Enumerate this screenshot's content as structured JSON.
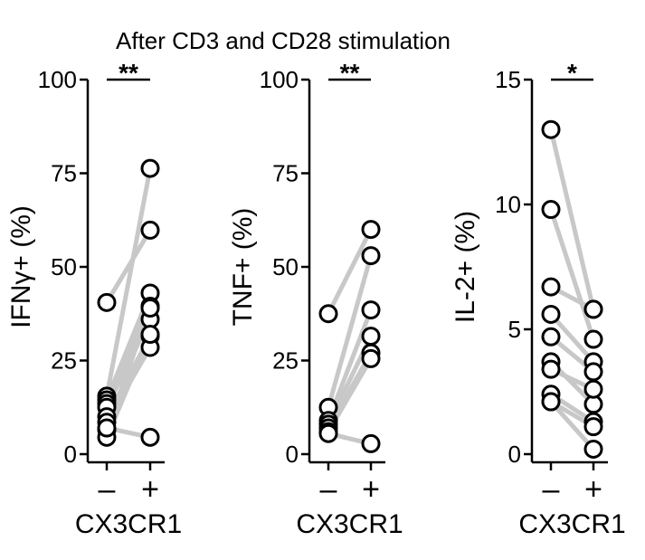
{
  "figure": {
    "title": "After CD3 and CD28 stimulation"
  },
  "chart_data": [
    {
      "type": "scatter",
      "ylabel": "IFNγ+ (%)",
      "xlabel": "CX3CR1",
      "categories": [
        "–",
        "+"
      ],
      "ylim": [
        0,
        100
      ],
      "yticks": [
        0,
        25,
        50,
        75,
        100
      ],
      "significance": "**",
      "pairs": [
        [
          40.5,
          59.8
        ],
        [
          15.5,
          76.3
        ],
        [
          14.5,
          43.0
        ],
        [
          13.5,
          39.5
        ],
        [
          12.5,
          36.0
        ],
        [
          10.0,
          31.5
        ],
        [
          8.5,
          28.5
        ],
        [
          6.5,
          39.0
        ],
        [
          4.5,
          32.0
        ],
        [
          7.0,
          4.5
        ]
      ],
      "colors": {
        "point": "#000000",
        "line": "#c8c8c8"
      }
    },
    {
      "type": "scatter",
      "ylabel": "TNF+ (%)",
      "xlabel": "CX3CR1",
      "categories": [
        "–",
        "+"
      ],
      "ylim": [
        0,
        100
      ],
      "yticks": [
        0,
        25,
        50,
        75,
        100
      ],
      "significance": "**",
      "pairs": [
        [
          37.5,
          60.0
        ],
        [
          12.5,
          53.0
        ],
        [
          9.0,
          38.5
        ],
        [
          8.0,
          31.5
        ],
        [
          7.0,
          27.0
        ],
        [
          6.0,
          25.5
        ],
        [
          5.5,
          2.8
        ]
      ],
      "colors": {
        "point": "#000000",
        "line": "#c8c8c8"
      }
    },
    {
      "type": "scatter",
      "ylabel": "IL-2+ (%)",
      "xlabel": "CX3CR1",
      "categories": [
        "–",
        "+"
      ],
      "ylim": [
        0,
        15
      ],
      "yticks": [
        0,
        5,
        10,
        15
      ],
      "significance": "*",
      "pairs": [
        [
          13.0,
          5.8
        ],
        [
          9.8,
          4.6
        ],
        [
          6.7,
          5.8
        ],
        [
          5.6,
          3.7
        ],
        [
          4.7,
          3.3
        ],
        [
          3.7,
          2.0
        ],
        [
          3.4,
          2.6
        ],
        [
          2.4,
          1.3
        ],
        [
          2.1,
          1.1
        ],
        [
          2.1,
          0.2
        ]
      ],
      "colors": {
        "point": "#000000",
        "line": "#c8c8c8"
      }
    }
  ]
}
